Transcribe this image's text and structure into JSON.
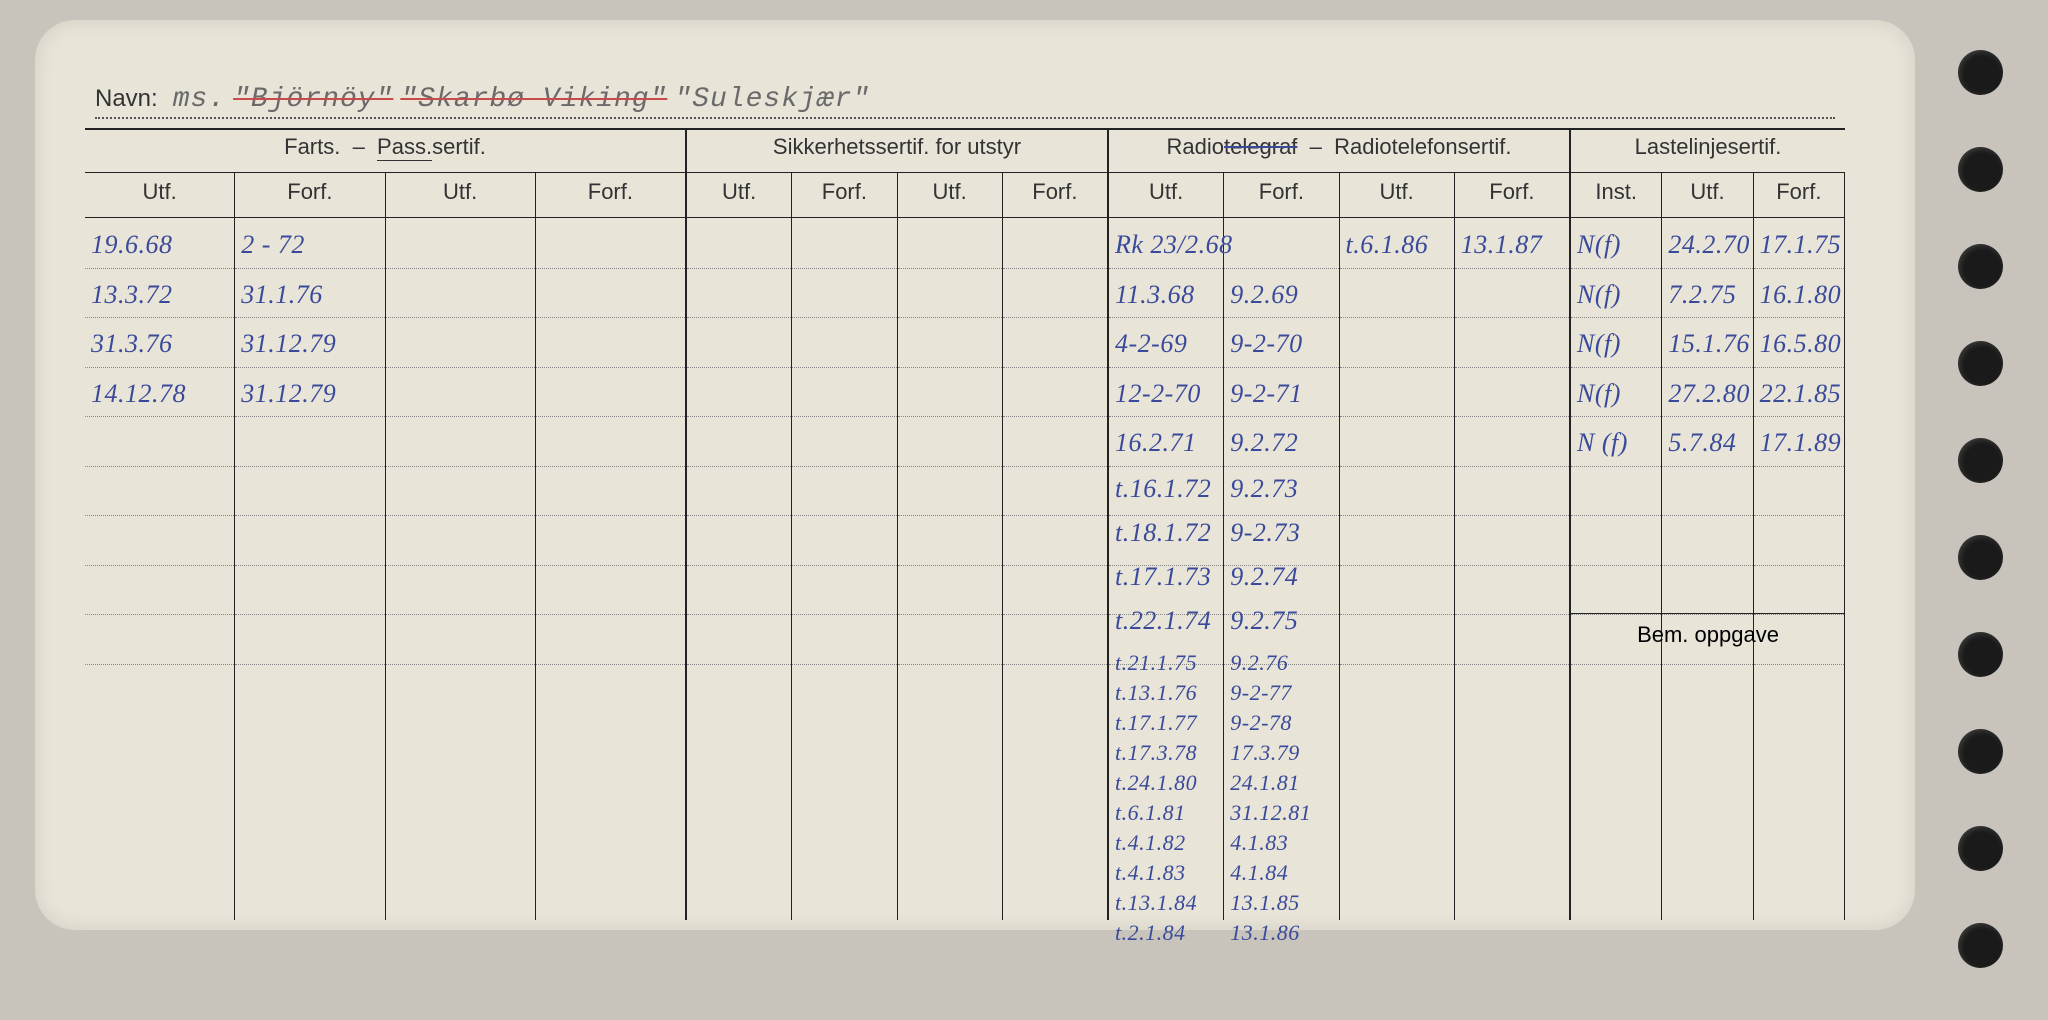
{
  "colors": {
    "paper": "#e8e4d8",
    "ink_printed": "#333333",
    "ink_hand": "#3a4a9a",
    "strike_red": "#c94a4a",
    "hole": "#1a1a1a",
    "background": "#c8c4bc"
  },
  "navn": {
    "label": "Navn:",
    "typed_prefix": "ms.",
    "name1": "\"Björnöy\"",
    "name2": "\"Skarbø Viking\"",
    "name3": "\"Suleskjær\"",
    "name1_struck": true,
    "name2_struck": true
  },
  "sections": {
    "farts": {
      "title": "Farts. – Pass.sertif.",
      "cols": [
        "Utf.",
        "Forf.",
        "Utf.",
        "Forf."
      ],
      "rows": [
        [
          "19.6.68",
          "2 - 72",
          "",
          ""
        ],
        [
          "13.3.72",
          "31.1.76",
          "",
          ""
        ],
        [
          "31.3.76",
          "31.12.79",
          "",
          ""
        ],
        [
          "14.12.78",
          "31.12.79",
          "",
          ""
        ]
      ]
    },
    "sikkerhet": {
      "title": "Sikkerhetssertif. for utstyr",
      "cols": [
        "Utf.",
        "Forf.",
        "Utf.",
        "Forf."
      ],
      "rows": []
    },
    "radio": {
      "title": "Radiotelegraf – Radiotelefonsertif.",
      "cols": [
        "Utf.",
        "Forf.",
        "Utf.",
        "Forf."
      ],
      "rows": [
        [
          "Rk 23/2.68",
          "",
          "t.6.1.86",
          "13.1.87"
        ],
        [
          "11.3.68",
          "9.2.69",
          "",
          ""
        ],
        [
          "4-2-69",
          "9-2-70",
          "",
          ""
        ],
        [
          "12-2-70",
          "9-2-71",
          "",
          ""
        ],
        [
          "16.2.71",
          "9.2.72",
          "",
          ""
        ],
        [
          "t.16.1.72",
          "9.2.73",
          "",
          ""
        ],
        [
          "t.18.1.72",
          "9-2.73",
          "",
          ""
        ],
        [
          "t.17.1.73",
          "9.2.74",
          "",
          ""
        ],
        [
          "t.22.1.74",
          "9.2.75",
          "",
          ""
        ],
        [
          "t.21.1.75",
          "9.2.76",
          "",
          ""
        ],
        [
          "t.13.1.76",
          "9-2-77",
          "",
          ""
        ],
        [
          "t.17.1.77",
          "9-2-78",
          "",
          ""
        ],
        [
          "t.17.3.78",
          "17.3.79",
          "",
          ""
        ],
        [
          "t.24.1.80",
          "24.1.81",
          "",
          ""
        ],
        [
          "t.6.1.81",
          "31.12.81",
          "",
          ""
        ],
        [
          "t.4.1.82",
          "4.1.83",
          "",
          ""
        ],
        [
          "t.4.1.83",
          "4.1.84",
          "",
          ""
        ],
        [
          "t.13.1.84",
          "13.1.85",
          "",
          ""
        ],
        [
          "t.2.1.84",
          "13.1.86",
          "",
          ""
        ]
      ]
    },
    "laste": {
      "title": "Lastelinjesertif.",
      "cols": [
        "Inst.",
        "Utf.",
        "Forf."
      ],
      "rows": [
        [
          "N(f)",
          "24.2.70",
          "17.1.75"
        ],
        [
          "N(f)",
          "7.2.75",
          "16.1.80"
        ],
        [
          "N(f)",
          "15.1.76",
          "16.5.80"
        ],
        [
          "N(f)",
          "27.2.80",
          "22.1.85"
        ],
        [
          "N (f)",
          "5.7.84",
          "17.1.89"
        ]
      ],
      "bem_label": "Bem. oppgave"
    }
  },
  "layout": {
    "row_height": 49.5,
    "dotted_rows": 9,
    "radio_tight_count": 19,
    "holes_count": 10
  },
  "typography": {
    "printed_font": "Arial",
    "hand_font": "cursive",
    "typed_font": "Courier New",
    "head_size_pt": 16,
    "hand_size_pt": 20
  }
}
